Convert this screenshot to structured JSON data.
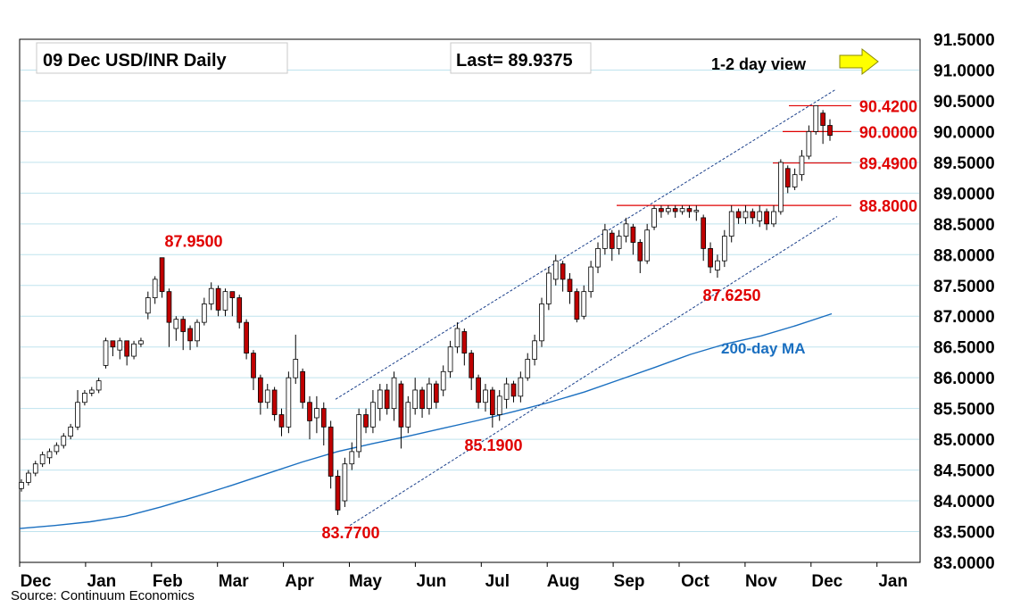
{
  "chart_data": {
    "type": "candlestick",
    "title": "09 Dec  USD/INR  Daily",
    "last_label": "Last= 89.9375",
    "view_label": "1-2 day view",
    "view_arrow": "right-arrow",
    "source": "Source: Continuum Economics",
    "y_axis": {
      "min": 83.0,
      "max": 91.5,
      "side": "right",
      "grid": true,
      "ticks": [
        "91.5000",
        "91.0000",
        "90.5000",
        "90.0000",
        "89.5000",
        "89.0000",
        "88.5000",
        "88.0000",
        "87.5000",
        "87.0000",
        "86.5000",
        "86.0000",
        "85.5000",
        "85.0000",
        "84.5000",
        "84.0000",
        "83.5000",
        "83.0000"
      ]
    },
    "x_axis": {
      "labels": [
        "Dec",
        "Jan",
        "Feb",
        "Mar",
        "Apr",
        "May",
        "Jun",
        "Jul",
        "Aug",
        "Sep",
        "Oct",
        "Nov",
        "Dec",
        "Jan"
      ]
    },
    "levels": [
      {
        "label": "90.4200",
        "value": 90.42
      },
      {
        "label": "90.0000",
        "value": 90.0
      },
      {
        "label": "89.4900",
        "value": 89.49
      },
      {
        "label": "88.8000",
        "value": 88.8
      }
    ],
    "annotations": [
      {
        "label": "87.9500",
        "value": 87.95,
        "position": "above"
      },
      {
        "label": "83.7700",
        "value": 83.77,
        "position": "below"
      },
      {
        "label": "85.1900",
        "value": 85.19,
        "position": "below"
      },
      {
        "label": "87.6250",
        "value": 87.625,
        "position": "below"
      }
    ],
    "ma_label": "200-day MA",
    "colors": {
      "up": "#ffffff",
      "down": "#c00000",
      "wick": "#000000",
      "level": "#e00000",
      "ma": "#1a6fc0",
      "grid": "#bfe3ee",
      "arrow": "#ffff00"
    },
    "channel": {
      "upper": [
        [
          85.65,
          88.8
        ],
        [
          90.68,
          88.8
        ]
      ],
      "lower": [
        [
          83.6,
          88.8
        ],
        [
          88.62,
          88.8
        ]
      ]
    },
    "ma_series": [
      83.55,
      83.6,
      83.66,
      83.75,
      83.9,
      84.07,
      84.25,
      84.44,
      84.63,
      84.8,
      84.93,
      85.05,
      85.18,
      85.31,
      85.45,
      85.6,
      85.77,
      85.97,
      86.17,
      86.38,
      86.55,
      86.68,
      86.85,
      87.04
    ],
    "candles": [
      [
        84.3,
        84.2,
        84.35,
        84.15
      ],
      [
        84.45,
        84.3,
        84.5,
        84.25
      ],
      [
        84.6,
        84.45,
        84.65,
        84.4
      ],
      [
        84.75,
        84.6,
        84.8,
        84.55
      ],
      [
        84.8,
        84.7,
        84.85,
        84.6
      ],
      [
        84.9,
        84.8,
        84.95,
        84.75
      ],
      [
        85.05,
        84.9,
        85.1,
        84.85
      ],
      [
        85.2,
        85.05,
        85.25,
        85.0
      ],
      [
        85.6,
        85.2,
        85.8,
        85.15
      ],
      [
        85.75,
        85.6,
        85.8,
        85.55
      ],
      [
        85.8,
        85.75,
        85.85,
        85.7
      ],
      [
        85.95,
        85.8,
        86.0,
        85.75
      ],
      [
        86.6,
        86.2,
        86.65,
        86.15
      ],
      [
        86.5,
        86.6,
        86.6,
        86.35
      ],
      [
        86.6,
        86.45,
        86.65,
        86.3
      ],
      [
        86.35,
        86.6,
        86.6,
        86.2
      ],
      [
        86.55,
        86.35,
        86.6,
        86.3
      ],
      [
        86.6,
        86.55,
        86.65,
        86.5
      ],
      [
        87.3,
        87.05,
        87.4,
        86.95
      ],
      [
        87.6,
        87.3,
        87.65,
        87.2
      ],
      [
        87.4,
        87.95,
        87.95,
        87.3
      ],
      [
        86.9,
        87.4,
        87.45,
        86.5
      ],
      [
        86.95,
        86.8,
        87.0,
        86.6
      ],
      [
        86.75,
        86.95,
        87.0,
        86.45
      ],
      [
        86.6,
        86.8,
        86.85,
        86.45
      ],
      [
        86.9,
        86.6,
        86.95,
        86.5
      ],
      [
        87.2,
        86.9,
        87.3,
        86.85
      ],
      [
        87.45,
        87.2,
        87.55,
        87.1
      ],
      [
        87.1,
        87.45,
        87.5,
        87.0
      ],
      [
        87.4,
        87.1,
        87.45,
        87.0
      ],
      [
        87.3,
        87.4,
        87.4,
        87.0
      ],
      [
        86.9,
        87.3,
        87.35,
        86.8
      ],
      [
        86.4,
        86.9,
        86.95,
        86.3
      ],
      [
        86.0,
        86.4,
        86.45,
        85.8
      ],
      [
        85.6,
        86.0,
        86.05,
        85.4
      ],
      [
        85.8,
        85.6,
        85.9,
        85.5
      ],
      [
        85.4,
        85.8,
        85.85,
        85.3
      ],
      [
        85.2,
        85.4,
        85.5,
        85.05
      ],
      [
        86.0,
        85.2,
        86.1,
        85.1
      ],
      [
        86.3,
        86.0,
        86.7,
        85.9
      ],
      [
        85.6,
        86.1,
        86.15,
        85.5
      ],
      [
        85.3,
        85.6,
        85.7,
        85.0
      ],
      [
        85.5,
        85.35,
        85.7,
        85.1
      ],
      [
        85.2,
        85.5,
        85.6,
        84.9
      ],
      [
        84.4,
        85.2,
        85.3,
        84.2
      ],
      [
        83.85,
        84.4,
        84.5,
        83.77
      ],
      [
        84.6,
        84.0,
        84.7,
        83.9
      ],
      [
        84.8,
        84.6,
        84.95,
        84.5
      ],
      [
        85.4,
        84.8,
        85.5,
        84.7
      ],
      [
        85.2,
        85.4,
        85.5,
        85.1
      ],
      [
        85.6,
        85.2,
        85.8,
        85.1
      ],
      [
        85.8,
        85.5,
        85.9,
        85.3
      ],
      [
        85.5,
        85.8,
        85.9,
        85.4
      ],
      [
        86.0,
        85.5,
        86.1,
        85.3
      ],
      [
        85.2,
        85.9,
        85.95,
        84.85
      ],
      [
        85.6,
        85.2,
        85.7,
        85.1
      ],
      [
        85.8,
        85.5,
        86.0,
        85.4
      ],
      [
        85.5,
        85.8,
        85.85,
        85.35
      ],
      [
        85.9,
        85.5,
        86.0,
        85.4
      ],
      [
        85.6,
        85.9,
        85.95,
        85.5
      ],
      [
        86.1,
        85.8,
        86.2,
        85.7
      ],
      [
        86.5,
        86.1,
        86.6,
        86.0
      ],
      [
        86.8,
        86.5,
        86.9,
        86.4
      ],
      [
        86.4,
        86.75,
        86.8,
        86.2
      ],
      [
        86.0,
        86.4,
        86.45,
        85.8
      ],
      [
        85.6,
        86.0,
        86.05,
        85.5
      ],
      [
        85.8,
        85.6,
        85.9,
        85.45
      ],
      [
        85.4,
        85.8,
        85.85,
        85.19
      ],
      [
        85.7,
        85.4,
        85.8,
        85.3
      ],
      [
        85.9,
        85.65,
        86.0,
        85.5
      ],
      [
        85.7,
        85.9,
        85.95,
        85.6
      ],
      [
        86.0,
        85.7,
        86.1,
        85.6
      ],
      [
        86.3,
        86.0,
        86.4,
        85.95
      ],
      [
        86.6,
        86.3,
        86.7,
        86.2
      ],
      [
        87.2,
        86.6,
        87.3,
        86.5
      ],
      [
        87.7,
        87.2,
        87.8,
        87.1
      ],
      [
        87.9,
        87.6,
        88.0,
        87.5
      ],
      [
        87.6,
        87.85,
        87.9,
        87.4
      ],
      [
        87.4,
        87.6,
        87.7,
        87.2
      ],
      [
        86.95,
        87.4,
        87.45,
        86.9
      ],
      [
        87.4,
        87.0,
        87.5,
        86.95
      ],
      [
        87.8,
        87.4,
        87.9,
        87.3
      ],
      [
        88.1,
        87.8,
        88.2,
        87.7
      ],
      [
        88.4,
        88.1,
        88.5,
        88.0
      ],
      [
        88.1,
        88.35,
        88.4,
        87.9
      ],
      [
        88.3,
        88.1,
        88.4,
        88.0
      ],
      [
        88.5,
        88.3,
        88.6,
        88.2
      ],
      [
        88.2,
        88.45,
        88.5,
        88.0
      ],
      [
        87.9,
        88.2,
        88.25,
        87.7
      ],
      [
        88.4,
        87.9,
        88.5,
        87.85
      ],
      [
        88.75,
        88.45,
        88.8,
        88.4
      ],
      [
        88.7,
        88.75,
        88.8,
        88.6
      ],
      [
        88.75,
        88.7,
        88.8,
        88.65
      ],
      [
        88.7,
        88.75,
        88.8,
        88.6
      ],
      [
        88.75,
        88.7,
        88.8,
        88.65
      ],
      [
        88.7,
        88.75,
        88.8,
        88.6
      ],
      [
        88.72,
        88.7,
        88.8,
        88.55
      ],
      [
        88.1,
        88.6,
        88.65,
        87.9
      ],
      [
        87.8,
        88.1,
        88.2,
        87.7
      ],
      [
        87.9,
        87.75,
        88.0,
        87.625
      ],
      [
        88.3,
        87.9,
        88.4,
        87.8
      ],
      [
        88.7,
        88.3,
        88.8,
        88.2
      ],
      [
        88.6,
        88.7,
        88.75,
        88.5
      ],
      [
        88.7,
        88.6,
        88.8,
        88.5
      ],
      [
        88.6,
        88.7,
        88.75,
        88.5
      ],
      [
        88.7,
        88.55,
        88.8,
        88.45
      ],
      [
        88.5,
        88.7,
        88.75,
        88.4
      ],
      [
        88.7,
        88.5,
        88.8,
        88.45
      ],
      [
        89.5,
        88.7,
        89.55,
        88.65
      ],
      [
        89.1,
        89.4,
        89.45,
        89.0
      ],
      [
        89.3,
        89.1,
        89.4,
        89.05
      ],
      [
        89.6,
        89.3,
        89.7,
        89.2
      ],
      [
        90.0,
        89.6,
        90.1,
        89.55
      ],
      [
        90.42,
        90.0,
        90.42,
        89.95
      ],
      [
        90.1,
        90.3,
        90.35,
        89.8
      ],
      [
        89.9375,
        90.1,
        90.2,
        89.85
      ]
    ]
  }
}
